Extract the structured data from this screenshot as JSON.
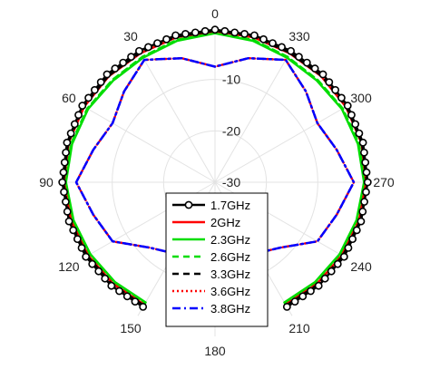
{
  "chart_data": {
    "type": "line",
    "subtype": "polar",
    "title": "",
    "theta_direction": "clockwise_from_top",
    "theta_tick_labels": [
      "0",
      "30",
      "60",
      "90",
      "120",
      "150",
      "180",
      "210",
      "240",
      "270",
      "300",
      "330"
    ],
    "theta_ticks_deg": [
      0,
      30,
      60,
      90,
      120,
      150,
      180,
      210,
      240,
      270,
      300,
      330
    ],
    "r_tick_labels": [
      "-10",
      "-20",
      "-30"
    ],
    "r_ticks": [
      -10,
      -20,
      -30
    ],
    "rlim": [
      -30,
      0
    ],
    "theta_range_deg": [
      -150,
      150
    ],
    "legend_position": "center-bottom",
    "grid": true,
    "x": [
      -150,
      -135,
      -120,
      -105,
      -90,
      -75,
      -60,
      -45,
      -30,
      -15,
      0,
      15,
      30,
      45,
      60,
      75,
      90,
      105,
      120,
      135,
      150
    ],
    "series": [
      {
        "name": "1.7GHz",
        "color": "#000000",
        "style": "solid-circle-markers",
        "values": [
          -2.0,
          -1.5,
          -1.0,
          -0.6,
          -0.3,
          -0.2,
          -0.2,
          -0.3,
          -0.5,
          -0.4,
          -0.3,
          -0.4,
          -0.5,
          -0.3,
          -0.2,
          -0.2,
          -0.3,
          -0.6,
          -1.0,
          -1.5,
          -2.0
        ]
      },
      {
        "name": "2GHz",
        "color": "#ff0000",
        "style": "solid",
        "values": [
          -2.5,
          -2.0,
          -1.5,
          -1.0,
          -0.6,
          -0.5,
          -0.6,
          -0.8,
          -1.0,
          -0.8,
          -0.6,
          -0.8,
          -1.0,
          -0.8,
          -0.6,
          -0.5,
          -0.6,
          -1.0,
          -1.5,
          -2.0,
          -2.5
        ]
      },
      {
        "name": "2.3GHz",
        "color": "#00dd00",
        "style": "solid",
        "values": [
          -3.0,
          -2.5,
          -2.0,
          -1.5,
          -1.0,
          -1.2,
          -1.5,
          -2.0,
          -2.0,
          -1.5,
          -1.0,
          -1.5,
          -2.0,
          -2.0,
          -1.5,
          -1.2,
          -1.0,
          -1.5,
          -2.0,
          -2.5,
          -3.0
        ]
      },
      {
        "name": "2.6GHz",
        "color": "#00dd00",
        "style": "dashed",
        "values": [
          -2.8,
          -2.3,
          -1.8,
          -1.3,
          -0.9,
          -1.0,
          -1.3,
          -1.8,
          -1.8,
          -1.3,
          -0.9,
          -1.3,
          -1.8,
          -1.8,
          -1.3,
          -1.0,
          -0.9,
          -1.3,
          -1.8,
          -2.3,
          -2.8
        ]
      },
      {
        "name": "3.3GHz",
        "color": "#000000",
        "style": "dashed",
        "values": [
          -2.3,
          -1.8,
          -1.3,
          -0.8,
          -0.5,
          -0.4,
          -0.5,
          -0.7,
          -0.9,
          -0.7,
          -0.5,
          -0.7,
          -0.9,
          -0.7,
          -0.5,
          -0.4,
          -0.5,
          -0.8,
          -1.3,
          -1.8,
          -2.3
        ]
      },
      {
        "name": "3.6GHz",
        "color": "#ff0000",
        "style": "dotted",
        "values": [
          -14.0,
          -12.0,
          -7.0,
          -5.5,
          -3.0,
          -5.5,
          -7.0,
          -5.0,
          -2.5,
          -5.0,
          -7.5,
          -5.0,
          -2.5,
          -5.0,
          -7.0,
          -5.5,
          -3.0,
          -5.5,
          -7.0,
          -12.0,
          -14.0
        ]
      },
      {
        "name": "3.8GHz",
        "color": "#0000ff",
        "style": "dash-dot",
        "values": [
          -14.0,
          -12.0,
          -7.0,
          -5.5,
          -3.0,
          -5.5,
          -7.0,
          -5.0,
          -2.5,
          -5.0,
          -7.5,
          -5.0,
          -2.5,
          -5.0,
          -7.0,
          -5.5,
          -3.0,
          -5.5,
          -7.0,
          -12.0,
          -14.0
        ]
      }
    ]
  }
}
